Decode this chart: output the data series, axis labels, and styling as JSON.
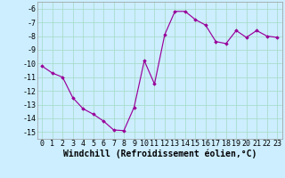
{
  "x": [
    0,
    1,
    2,
    3,
    4,
    5,
    6,
    7,
    8,
    9,
    10,
    11,
    12,
    13,
    14,
    15,
    16,
    17,
    18,
    19,
    20,
    21,
    22,
    23
  ],
  "y": [
    -10.2,
    -10.7,
    -11.0,
    -12.5,
    -13.3,
    -13.7,
    -14.2,
    -14.85,
    -14.9,
    -13.2,
    -9.8,
    -11.5,
    -7.9,
    -6.2,
    -6.2,
    -6.8,
    -7.2,
    -8.4,
    -8.55,
    -7.6,
    -8.1,
    -7.6,
    -8.0,
    -8.1
  ],
  "line_color": "#990099",
  "marker_color": "#990099",
  "bg_color": "#cceeff",
  "grid_color": "#aaddcc",
  "xlabel": "Windchill (Refroidissement éolien,°C)",
  "ylim": [
    -15.5,
    -5.5
  ],
  "xlim": [
    -0.5,
    23.5
  ],
  "yticks": [
    -15,
    -14,
    -13,
    -12,
    -11,
    -10,
    -9,
    -8,
    -7,
    -6
  ],
  "xtick_labels": [
    "0",
    "1",
    "2",
    "3",
    "4",
    "5",
    "6",
    "7",
    "8",
    "9",
    "10",
    "11",
    "12",
    "13",
    "14",
    "15",
    "16",
    "17",
    "18",
    "19",
    "20",
    "21",
    "22",
    "23"
  ],
  "label_fontsize": 7,
  "tick_fontsize": 6
}
